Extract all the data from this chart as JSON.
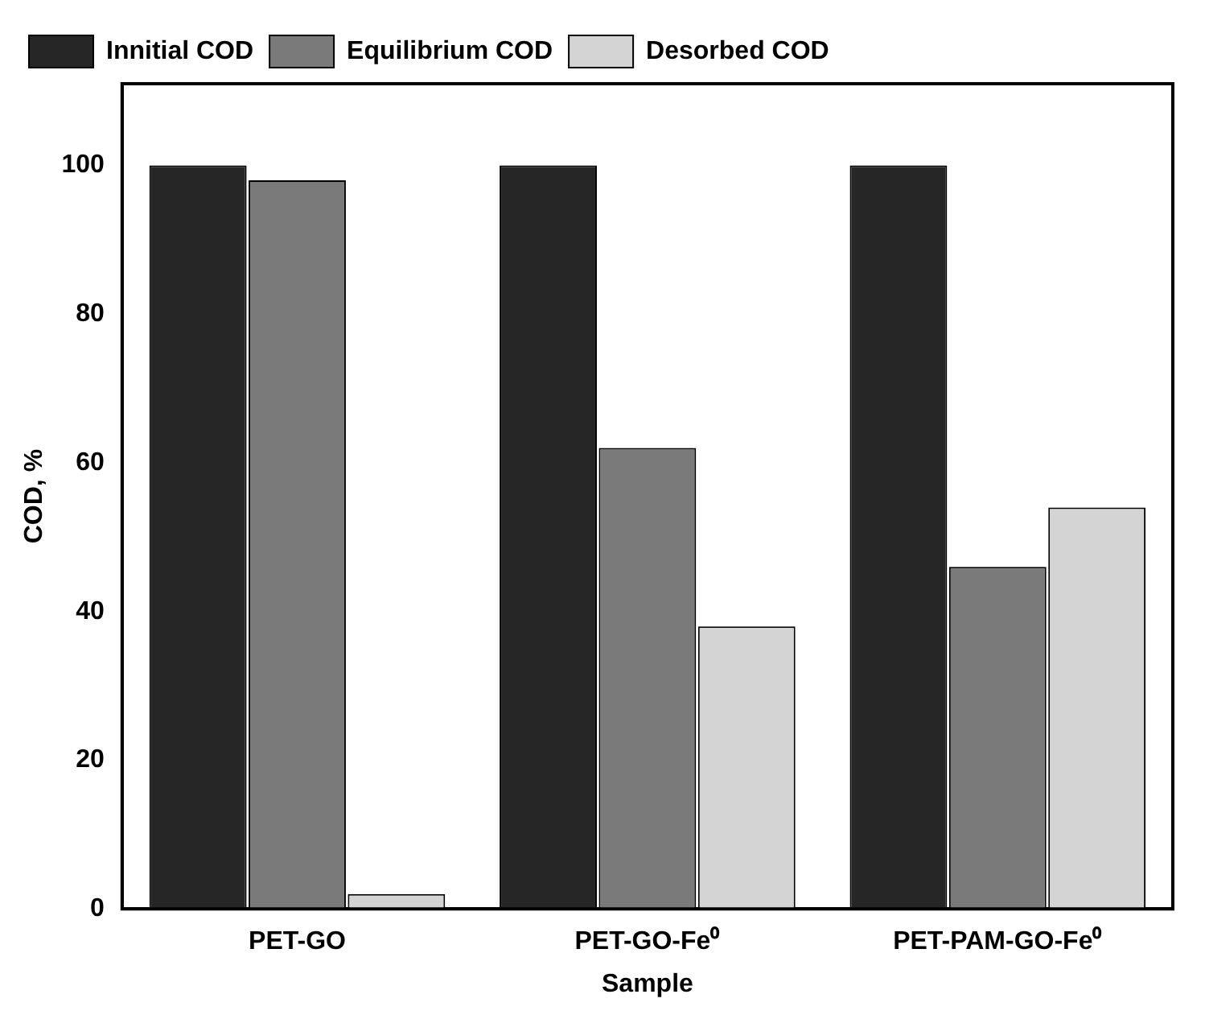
{
  "chart_data": {
    "type": "bar",
    "xlabel": "Sample",
    "ylabel": "COD, %",
    "categories": [
      "PET-GO",
      "PET-GO-Fe⁰",
      "PET-PAM-GO-Fe⁰"
    ],
    "series": [
      {
        "name": "Innitial COD",
        "color": "#262626",
        "values": [
          100,
          100,
          100
        ]
      },
      {
        "name": "Equilibrium COD",
        "color": "#7a7a7a",
        "values": [
          98,
          62,
          46
        ]
      },
      {
        "name": "Desorbed COD",
        "color": "#d4d4d4",
        "values": [
          2,
          38,
          54
        ]
      }
    ],
    "ylim": [
      0,
      111
    ],
    "yticks": [
      0,
      20,
      40,
      60,
      80,
      100
    ],
    "grid": false,
    "legend": "top left"
  }
}
